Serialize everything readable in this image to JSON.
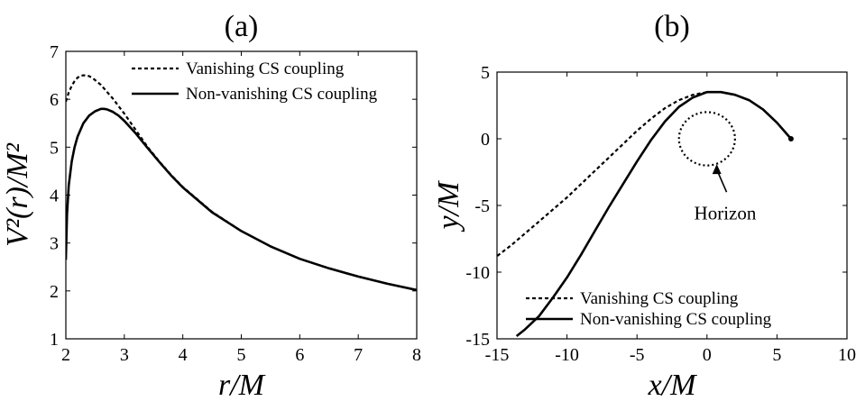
{
  "chart_data": [
    {
      "type": "line",
      "panel_label": "(a)",
      "xlabel": "r/M",
      "ylabel": "V²(r)/M²",
      "xlim": [
        2,
        8
      ],
      "ylim": [
        1,
        7
      ],
      "xticks": [
        2,
        3,
        4,
        5,
        6,
        7,
        8
      ],
      "yticks": [
        1,
        2,
        3,
        4,
        5,
        6,
        7
      ],
      "grid": false,
      "legend_position": "top-right",
      "series": [
        {
          "name": "Vanishing CS coupling",
          "style": "dashed",
          "x": [
            2.0,
            2.05,
            2.1,
            2.15,
            2.2,
            2.25,
            2.3,
            2.35,
            2.4,
            2.45,
            2.5,
            2.6,
            2.7,
            2.8,
            2.9,
            3.0,
            3.2,
            3.4,
            3.6,
            3.8,
            4.0,
            4.5,
            5.0,
            5.5,
            6.0,
            6.5,
            7.0,
            7.5,
            8.0
          ],
          "values": [
            5.95,
            6.14,
            6.28,
            6.38,
            6.45,
            6.49,
            6.5,
            6.5,
            6.48,
            6.45,
            6.4,
            6.3,
            6.16,
            6.02,
            5.86,
            5.7,
            5.35,
            5.0,
            4.7,
            4.42,
            4.17,
            3.65,
            3.25,
            2.93,
            2.67,
            2.47,
            2.3,
            2.15,
            2.02
          ]
        },
        {
          "name": "Non-vanishing CS coupling",
          "style": "solid",
          "x": [
            2.0,
            2.02,
            2.05,
            2.1,
            2.15,
            2.2,
            2.3,
            2.4,
            2.5,
            2.6,
            2.65,
            2.7,
            2.8,
            2.9,
            3.0,
            3.2,
            3.4,
            3.6,
            3.8,
            4.0,
            4.5,
            5.0,
            5.5,
            6.0,
            6.5,
            7.0,
            7.5,
            8.0
          ],
          "values": [
            2.65,
            3.6,
            4.2,
            4.7,
            5.0,
            5.22,
            5.5,
            5.66,
            5.75,
            5.8,
            5.8,
            5.79,
            5.74,
            5.66,
            5.55,
            5.28,
            4.98,
            4.69,
            4.41,
            4.16,
            3.64,
            3.25,
            2.93,
            2.67,
            2.47,
            2.3,
            2.15,
            2.02
          ]
        }
      ]
    },
    {
      "type": "line",
      "panel_label": "(b)",
      "xlabel": "x/M",
      "ylabel": "y/M",
      "xlim": [
        -15,
        10
      ],
      "ylim": [
        -15,
        5
      ],
      "xticks": [
        -15,
        -10,
        -5,
        0,
        5,
        10
      ],
      "yticks": [
        -15,
        -10,
        -5,
        0,
        5
      ],
      "grid": false,
      "legend_position": "bottom-right",
      "annotation": "Horizon",
      "horizon_radius": 2,
      "series": [
        {
          "name": "Vanishing CS coupling",
          "style": "dashed",
          "x": [
            6.0,
            5.5,
            5.0,
            4.0,
            3.0,
            2.0,
            1.0,
            0.0,
            -1.0,
            -2.0,
            -3.0,
            -4.0,
            -5.0,
            -6.0,
            -7.0,
            -8.0,
            -9.0,
            -10.0,
            -11.0,
            -12.0,
            -13.0,
            -14.0,
            -15.0
          ],
          "values": [
            0.0,
            0.6,
            1.2,
            2.2,
            2.9,
            3.3,
            3.5,
            3.5,
            3.3,
            2.9,
            2.3,
            1.5,
            0.6,
            -0.4,
            -1.4,
            -2.4,
            -3.4,
            -4.4,
            -5.3,
            -6.2,
            -7.1,
            -8.0,
            -8.8
          ]
        },
        {
          "name": "Non-vanishing CS coupling",
          "style": "solid",
          "x": [
            6.0,
            5.5,
            5.0,
            4.0,
            3.0,
            2.0,
            1.0,
            0.0,
            -1.0,
            -2.0,
            -3.0,
            -4.0,
            -5.0,
            -6.0,
            -7.0,
            -8.0,
            -9.0,
            -10.0,
            -11.0,
            -12.0,
            -13.0,
            -13.6
          ],
          "values": [
            0.0,
            0.6,
            1.2,
            2.2,
            2.9,
            3.3,
            3.5,
            3.5,
            3.1,
            2.4,
            1.3,
            -0.1,
            -1.7,
            -3.4,
            -5.1,
            -6.9,
            -8.7,
            -10.4,
            -11.9,
            -13.3,
            -14.3,
            -14.8
          ]
        }
      ]
    }
  ]
}
